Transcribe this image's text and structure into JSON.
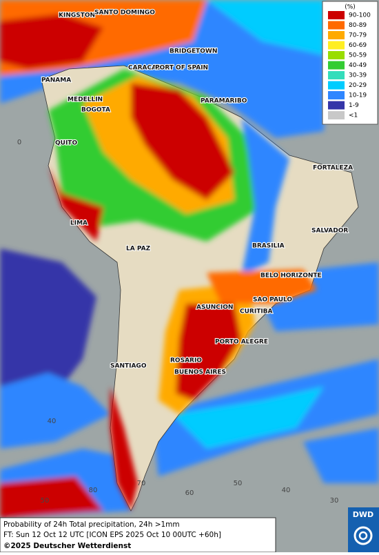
{
  "map": {
    "cities": [
      "KINGSTON",
      "SANTO DOMINGO",
      "BRIDGETOWN",
      "CARACAS",
      "PORT OF SPAIN",
      "PANAMA",
      "MEDELLIN",
      "BOGOTA",
      "PARAMARIBO",
      "QUITO",
      "FORTALEZA",
      "LIMA",
      "SALVADOR",
      "BRASILIA",
      "LA PAZ",
      "BELO HORIZONTE",
      "SAO PAULO",
      "ASUNCION",
      "CURITIBA",
      "PORTO ALEGRE",
      "ROSARIO",
      "BUENOS AIRES",
      "SANTIAGO"
    ],
    "graticule_labels": [
      "0",
      "40",
      "50",
      "80",
      "70",
      "60",
      "50",
      "40",
      "30"
    ]
  },
  "legend": {
    "title": "(%)",
    "items": [
      {
        "label": "90-100",
        "color": "#cc0000"
      },
      {
        "label": "80-89",
        "color": "#ff6a00"
      },
      {
        "label": "70-79",
        "color": "#ffaa00"
      },
      {
        "label": "60-69",
        "color": "#ffee22"
      },
      {
        "label": "50-59",
        "color": "#99dd00"
      },
      {
        "label": "40-49",
        "color": "#33cc33"
      },
      {
        "label": "30-39",
        "color": "#33ddbb"
      },
      {
        "label": "20-29",
        "color": "#00ccff"
      },
      {
        "label": "10-19",
        "color": "#2f86ff"
      },
      {
        "label": "1-9",
        "color": "#3535a8"
      },
      {
        "label": "<1",
        "color": "#c8c8c8"
      }
    ]
  },
  "footer": {
    "caption": "Probability of 24h Total precipitation, 24h >1mm",
    "forecast_time": "FT: Sun 12 Oct 12 UTC [ICON EPS 2025 Oct 10 00UTC +60h]",
    "copyright": "©2025 Deutscher Wetterdienst"
  },
  "logo": "DWD"
}
